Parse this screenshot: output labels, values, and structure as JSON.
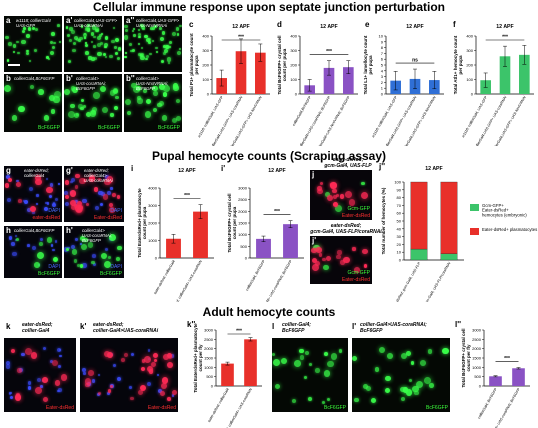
{
  "titles": {
    "t1": "Cellular immune response upon septate junction perturbation",
    "t2": "Pupal hemocyte counts (Scraping assay)",
    "t3": "Adult hemocyte counts"
  },
  "panels": {
    "a": {
      "label": "a",
      "genotype": "w1118; collierGal4\nUAS-GFP"
    },
    "a1": {
      "label": "a'",
      "genotype": "collierGal4,UAS-GFP>\nUAS-coraRNAi"
    },
    "a2": {
      "label": "a''",
      "genotype": "collierGal4,UAS-GFP>\nUAS-NrxIVRNAi"
    },
    "b": {
      "label": "b",
      "genotype": "collierGal4,BcF6GFP",
      "caption": "BcF6GFP"
    },
    "b1": {
      "label": "b'",
      "genotype": "collierGal4>\nUAS-coraRNAi;\nBcF6GFP",
      "caption": "BcF6GFP"
    },
    "b2": {
      "label": "b''",
      "genotype": "collierGal4>\nUAS-NrxIVRNAi;\nBcF6GFP",
      "caption": "BcF6GFP"
    },
    "g": {
      "label": "g",
      "genotype": "eater-dsRed;\ncollierGal4",
      "caption1": "DAPI",
      "caption2": "eater-dsRed"
    },
    "g1": {
      "label": "g'",
      "genotype": "eater-dsRed;\ncollierGal4>\nUAS-coraRNAi",
      "caption1": "DAPI",
      "caption2": "Eater-dsRed"
    },
    "h": {
      "label": "h",
      "genotype": "collierGal4,BcF6GFP",
      "caption1": "DAPI",
      "caption2": "BcF6GFP"
    },
    "h1": {
      "label": "h'",
      "genotype": "collierGal4>\nUAS-coraRNAi;\nBcF6GFP",
      "caption1": "DAPI",
      "caption2": "BcF6GFP"
    },
    "j": {
      "label": "j",
      "caption1": "Gcm-GFP",
      "caption2": "Eater-dsRed"
    },
    "j1": {
      "label": "j'",
      "caption1": "Gcm-GFP",
      "caption2": "Eater-dsRed"
    },
    "k": {
      "label": "k",
      "caption": "Eater-dsRed"
    },
    "k1": {
      "label": "k'",
      "caption": "Eater-dsRed"
    },
    "l": {
      "label": "l",
      "caption": "BcF6GFP"
    },
    "l1": {
      "label": "l'",
      "caption": "BcF6GFP"
    }
  },
  "external_labels": {
    "j_top": "eater-dsRed;\ngcm-Gal4, UAS-FLP",
    "j_mid": "eater-dsRed;\ngcm-Gal4, UAS-FLP/coraRNAi",
    "k_top": "eater-dsRed;\ncollier-Gal4",
    "k1_top": "eater-dsRed;\ncollier-Gal4>UAS-coraRNAi",
    "l_top": "collier-Gal4;\nBcF6GFP",
    "l1_top": "collier-Gal4>UAS-coraRNAi;\nBcF6GFP"
  },
  "chart_data": [
    {
      "id": "c",
      "type": "bar",
      "title": "12 APF",
      "ylabel": "Total P1+ plasmatocyte count\nper pupa",
      "categories": [
        "w1118; collierGal4,\nUAS-GFP",
        "collierGal4,UAS-GFP>\nUAS-coraRNAi",
        "collierGal4,UAS-GFP>\nUAS-NrxIVRNAi"
      ],
      "values": [
        110,
        295,
        285
      ],
      "errors": [
        55,
        85,
        60
      ],
      "ylim": [
        0,
        400
      ],
      "yticks": [
        0,
        100,
        200,
        300,
        400
      ],
      "color": "#e8302a",
      "significance": "***"
    },
    {
      "id": "d",
      "type": "bar",
      "title": "12 APF",
      "ylabel": "Total BcF6GFP+ crystal cell\ncount per pupa",
      "categories": [
        "collierGal4,BcF6GFP",
        "collierGal4>UAS-coraRNAi;\nBcF6GFP",
        "collierGal4>UAS-NrxIVRNAi;\nBcF6GFP"
      ],
      "values": [
        60,
        180,
        185
      ],
      "errors": [
        40,
        50,
        45
      ],
      "ylim": [
        0,
        400
      ],
      "yticks": [
        0,
        100,
        200,
        300,
        400
      ],
      "color": "#8a52c4",
      "significance": "***"
    },
    {
      "id": "e",
      "type": "bar",
      "title": "12 APF",
      "ylabel": "Total L1+ lamellocyte count\nper pupa",
      "categories": [
        "w1118; collierGal4,\nUAS-GFP",
        "collierGal4,UAS-GFP>\nUAS-coraRNAi",
        "collierGal4,UAS-GFP>\nUAS-NrxIVRNAi"
      ],
      "values": [
        2.3,
        2.6,
        2.4
      ],
      "errors": [
        1.6,
        1.7,
        1.5
      ],
      "ylim": [
        0,
        10
      ],
      "yticks": [
        0,
        1,
        2,
        3,
        4,
        5,
        6,
        7,
        8,
        9,
        10
      ],
      "color": "#2f6fd6",
      "significance": "ns"
    },
    {
      "id": "f",
      "type": "bar",
      "title": "12 APF",
      "ylabel": "Total Atl1+ hemocyte count\nper pupa",
      "categories": [
        "w1118; collierGal4,\nUAS-GFP",
        "collierGal4,UAS-GFP>\nUAS-coraRNAi",
        "collierGal4,UAS-GFP>\nUAS-NrxIVRNAi"
      ],
      "values": [
        95,
        260,
        270
      ],
      "errors": [
        50,
        70,
        65
      ],
      "ylim": [
        0,
        400
      ],
      "yticks": [
        0,
        100,
        200,
        300,
        400
      ],
      "color": "#3cc46a",
      "significance": "***"
    },
    {
      "id": "i",
      "type": "bar",
      "title": "12 APF",
      "ylabel": "Total EaterdsRed+ plasmatocyte\ncount per pupa",
      "categories": [
        "eater-dsRed;\ncollierGal4",
        "eater-dsRed;\ncollierGal4>\nUAS-coraRNAi"
      ],
      "values": [
        1100,
        2650
      ],
      "errors": [
        250,
        400
      ],
      "ylim": [
        0,
        4000
      ],
      "yticks": [
        0,
        1000,
        2000,
        3000,
        4000
      ],
      "color": "#e8302a",
      "significance": "***"
    },
    {
      "id": "i1",
      "type": "bar",
      "title": "12 APF",
      "ylabel": "Total BcF6GFP+ crystal cell\ncount per pupa",
      "categories": [
        "collierGal4,\nBcF6GFP",
        "collierGal4>\nUAS-coraRNAi;\nBcF6GFP"
      ],
      "values": [
        820,
        1450
      ],
      "errors": [
        120,
        150
      ],
      "ylim": [
        0,
        3000
      ],
      "yticks": [
        0,
        500,
        1000,
        1500,
        2000,
        2500,
        3000
      ],
      "color": "#8a52c4",
      "significance": "***"
    },
    {
      "id": "j2",
      "type": "stacked-bar",
      "title": "12 APF",
      "ylabel": "Total number of hemocytes (%)",
      "categories": [
        "eater-dsRed;\ngcm-Gal4, UAS-FLP",
        "eater-dsRed;\ngcm-Gal4, UAS-FLP/coraRNAi"
      ],
      "series": [
        {
          "name": "Gcm-GFP+\nEater-dsRed+\nhemocytes (embryonic)",
          "values": [
            14,
            8
          ],
          "color": "#3cc46a"
        },
        {
          "name": "Eater-dsRed+ plasmatocytes",
          "values": [
            86,
            92
          ],
          "color": "#e8302a"
        }
      ],
      "ylim": [
        0,
        100
      ],
      "yticks": [
        0,
        10,
        20,
        30,
        40,
        50,
        60,
        70,
        80,
        90,
        100
      ]
    },
    {
      "id": "k2",
      "type": "bar",
      "title": "",
      "ylabel": "Total EaterdsRed+ plasmatocyte\ncount per fly",
      "categories": [
        "eater-dsRed;\ncollierGal4",
        "eater-dsRed;\ncollierGal4>\nUAS-coraRNAi"
      ],
      "values": [
        1200,
        2500
      ],
      "errors": [
        80,
        90
      ],
      "ylim": [
        0,
        3000
      ],
      "yticks": [
        0,
        500,
        1000,
        1500,
        2000,
        2500,
        3000
      ],
      "color": "#e8302a",
      "significance": "***"
    },
    {
      "id": "l2",
      "type": "bar",
      "title": "",
      "ylabel": "Total BcF6GFP+ crystal cell\ncount per fly",
      "categories": [
        "collierGal4;\nBcF6GFP",
        "collierGal4>\nUAS-coraRNAi;\nBcF6GFP"
      ],
      "values": [
        520,
        950
      ],
      "errors": [
        30,
        40
      ],
      "ylim": [
        0,
        3000
      ],
      "yticks": [
        0,
        500,
        1000,
        1500,
        2000,
        2500,
        3000
      ],
      "color": "#8a52c4",
      "significance": "***"
    }
  ],
  "chart_labels": {
    "c": "c",
    "d": "d",
    "e": "e",
    "f": "f",
    "i": "i",
    "i1": "i'",
    "j2": "j''",
    "k2": "k''",
    "l2": "l''"
  }
}
